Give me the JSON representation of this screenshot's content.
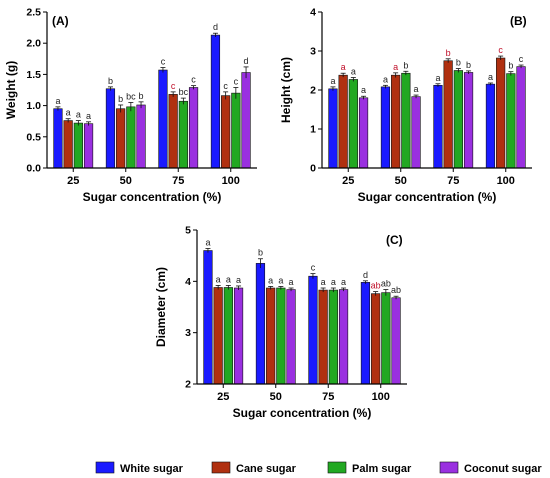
{
  "legend": {
    "placement": "bottom",
    "items": [
      {
        "label": "White sugar",
        "color": "#1a1aff"
      },
      {
        "label": "Cane sugar",
        "color": "#b03010"
      },
      {
        "label": "Palm sugar",
        "color": "#22a822"
      },
      {
        "label": "Coconut sugar",
        "color": "#9a30e0"
      }
    ]
  },
  "colors": {
    "series": [
      "#1a1aff",
      "#b03010",
      "#22a822",
      "#9a30e0"
    ],
    "letter_default": "#222222",
    "letter_highlight": "#c0102a"
  },
  "chart_data": [
    {
      "panel_label": "(A)",
      "type": "bar",
      "xlabel": "Sugar concentration (%)",
      "ylabel": "Weight (g)",
      "categories": [
        "25",
        "50",
        "75",
        "100"
      ],
      "ylim": [
        0,
        2.5
      ],
      "yticks": [
        "0.0",
        "0.5",
        "1.0",
        "1.5",
        "2.0",
        "2.5"
      ],
      "grid": false,
      "series": [
        {
          "name": "White sugar",
          "values": [
            0.95,
            1.27,
            1.57,
            2.13
          ],
          "errors": [
            0.03,
            0.03,
            0.04,
            0.03
          ],
          "letters": [
            "a",
            "b",
            "c",
            "d"
          ]
        },
        {
          "name": "Cane sugar",
          "values": [
            0.76,
            0.95,
            1.18,
            1.16
          ],
          "errors": [
            0.03,
            0.06,
            0.04,
            0.06
          ],
          "letters": [
            "a",
            "b",
            "c",
            "c"
          ]
        },
        {
          "name": "Palm sugar",
          "values": [
            0.72,
            0.98,
            1.07,
            1.2
          ],
          "errors": [
            0.04,
            0.07,
            0.05,
            0.09
          ],
          "letters": [
            "a",
            "bc",
            "bc",
            "c"
          ]
        },
        {
          "name": "Coconut sugar",
          "values": [
            0.71,
            1.01,
            1.29,
            1.53
          ],
          "errors": [
            0.03,
            0.05,
            0.03,
            0.09
          ],
          "letters": [
            "a",
            "b",
            "c",
            "d"
          ]
        }
      ]
    },
    {
      "panel_label": "(B)",
      "type": "bar",
      "xlabel": "Sugar concentration (%)",
      "ylabel": "Height (cm)",
      "categories": [
        "25",
        "50",
        "75",
        "100"
      ],
      "ylim": [
        0,
        4
      ],
      "yticks": [
        "0",
        "1",
        "2",
        "3",
        "4"
      ],
      "grid": false,
      "series": [
        {
          "name": "White sugar",
          "values": [
            2.03,
            2.08,
            2.12,
            2.15
          ],
          "errors": [
            0.05,
            0.04,
            0.04,
            0.03
          ],
          "letters": [
            "a",
            "a",
            "a",
            "a"
          ]
        },
        {
          "name": "Cane sugar",
          "values": [
            2.38,
            2.38,
            2.75,
            2.82
          ],
          "errors": [
            0.05,
            0.06,
            0.05,
            0.05
          ],
          "letters": [
            "a",
            "a",
            "b",
            "c"
          ]
        },
        {
          "name": "Palm sugar",
          "values": [
            2.27,
            2.43,
            2.5,
            2.42
          ],
          "errors": [
            0.05,
            0.05,
            0.05,
            0.05
          ],
          "letters": [
            "a",
            "b",
            "b",
            "b"
          ]
        },
        {
          "name": "Coconut sugar",
          "values": [
            1.8,
            1.83,
            2.45,
            2.6
          ],
          "errors": [
            0.04,
            0.04,
            0.04,
            0.04
          ],
          "letters": [
            "a",
            "a",
            "b",
            "c"
          ]
        }
      ]
    },
    {
      "panel_label": "(C)",
      "type": "bar",
      "xlabel": "Sugar concentration (%)",
      "ylabel": "Diameter (cm)",
      "categories": [
        "25",
        "50",
        "75",
        "100"
      ],
      "ylim": [
        2,
        5
      ],
      "yticks": [
        "2",
        "3",
        "4",
        "5"
      ],
      "grid": false,
      "series": [
        {
          "name": "White sugar",
          "values": [
            4.6,
            4.35,
            4.1,
            3.98
          ],
          "errors": [
            0.04,
            0.09,
            0.05,
            0.03
          ],
          "letters": [
            "a",
            "b",
            "c",
            "d"
          ]
        },
        {
          "name": "Cane sugar",
          "values": [
            3.88,
            3.87,
            3.83,
            3.76
          ],
          "errors": [
            0.04,
            0.03,
            0.04,
            0.04
          ],
          "letters": [
            "a",
            "a",
            "a",
            "ab"
          ]
        },
        {
          "name": "Palm sugar",
          "values": [
            3.88,
            3.87,
            3.83,
            3.78
          ],
          "errors": [
            0.04,
            0.03,
            0.04,
            0.06
          ],
          "letters": [
            "a",
            "a",
            "a",
            "ab"
          ]
        },
        {
          "name": "Coconut sugar",
          "values": [
            3.87,
            3.84,
            3.84,
            3.68
          ],
          "errors": [
            0.04,
            0.03,
            0.03,
            0.03
          ],
          "letters": [
            "a",
            "a",
            "a",
            "ab"
          ]
        }
      ]
    }
  ]
}
